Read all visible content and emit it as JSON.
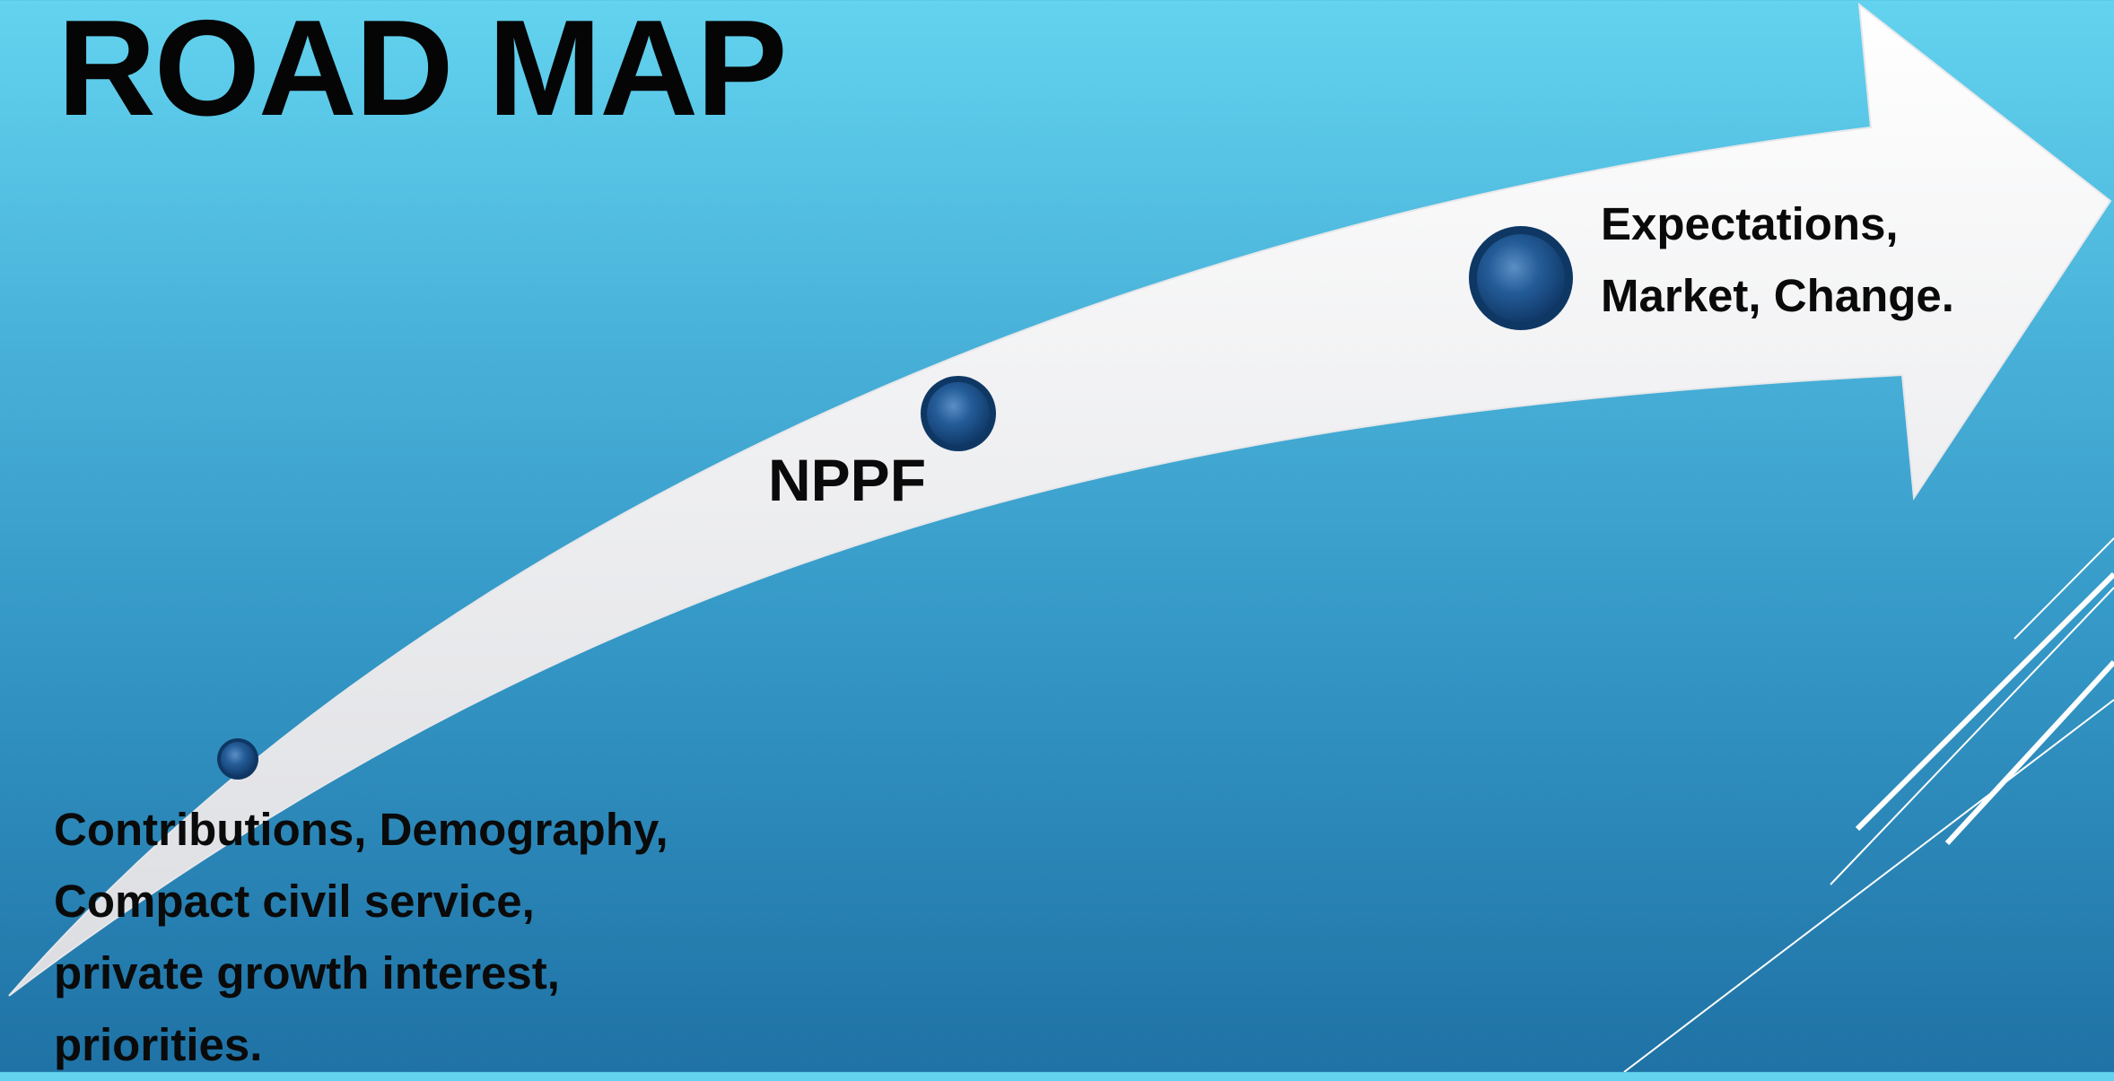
{
  "slide": {
    "title": "ROAD MAP"
  },
  "milestones": [
    {
      "lines": [
        "Contributions, Demography,",
        "Compact civil service,",
        "private growth interest,",
        "priorities."
      ]
    },
    {
      "lines": [
        "NPPF"
      ]
    },
    {
      "lines": [
        "Expectations,",
        "Market, Change."
      ]
    }
  ],
  "colors": {
    "background_top": "#63d3ef",
    "background_bottom": "#1f72a5",
    "arrow": "#f2f2f4",
    "dot": "#1b4f86",
    "text": "#0a0a0a"
  }
}
